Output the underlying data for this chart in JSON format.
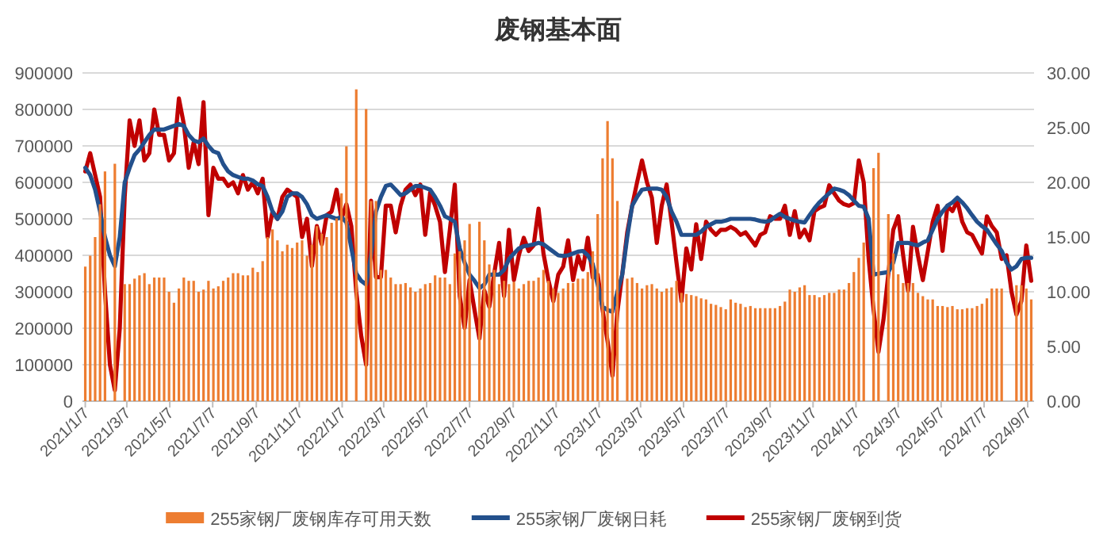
{
  "chart_data": {
    "type": "bar",
    "title": "废钢基本面",
    "legend": "bottom",
    "grid": "y",
    "xlim": [
      "2021-01-03",
      "2024-09-16"
    ],
    "xticks": [
      {
        "value": "2021-01-07",
        "label": "2021/1/7"
      },
      {
        "value": "2021-03-07",
        "label": "2021/3/7"
      },
      {
        "value": "2021-05-07",
        "label": "2021/5/7"
      },
      {
        "value": "2021-07-07",
        "label": "2021/7/7"
      },
      {
        "value": "2021-09-07",
        "label": "2021/9/7"
      },
      {
        "value": "2021-11-07",
        "label": "2021/11/7"
      },
      {
        "value": "2022-01-07",
        "label": "2022/1/7"
      },
      {
        "value": "2022-03-07",
        "label": "2022/3/7"
      },
      {
        "value": "2022-05-07",
        "label": "2022/5/7"
      },
      {
        "value": "2022-07-07",
        "label": "2022/7/7"
      },
      {
        "value": "2022-09-07",
        "label": "2022/9/7"
      },
      {
        "value": "2022-11-07",
        "label": "2022/11/7"
      },
      {
        "value": "2023-01-07",
        "label": "2023/1/7"
      },
      {
        "value": "2023-03-07",
        "label": "2023/3/7"
      },
      {
        "value": "2023-05-07",
        "label": "2023/5/7"
      },
      {
        "value": "2023-07-07",
        "label": "2023/7/7"
      },
      {
        "value": "2023-09-07",
        "label": "2023/9/7"
      },
      {
        "value": "2023-11-07",
        "label": "2023/11/7"
      },
      {
        "value": "2024-01-07",
        "label": "2024/1/7"
      },
      {
        "value": "2024-03-07",
        "label": "2024/3/7"
      },
      {
        "value": "2024-05-07",
        "label": "2024/5/7"
      },
      {
        "value": "2024-07-07",
        "label": "2024/7/7"
      },
      {
        "value": "2024-09-07",
        "label": "2024/9/7"
      }
    ],
    "ylim": [
      0,
      900000
    ],
    "yticks": [
      0,
      100000,
      200000,
      300000,
      400000,
      500000,
      600000,
      700000,
      800000,
      900000
    ],
    "y2lim": [
      0,
      30
    ],
    "y2ticks": [
      {
        "value": 0,
        "label": "0.00"
      },
      {
        "value": 5,
        "label": "5.00"
      },
      {
        "value": 10,
        "label": "10.00"
      },
      {
        "value": 15,
        "label": "15.00"
      },
      {
        "value": 20,
        "label": "20.00"
      },
      {
        "value": 25,
        "label": "25.00"
      },
      {
        "value": 30,
        "label": "30.00"
      }
    ],
    "x": [
      "2021-01-07",
      "2021-01-14",
      "2021-01-21",
      "2021-01-28",
      "2021-02-04",
      "2021-02-11",
      "2021-02-18",
      "2021-02-25",
      "2021-03-04",
      "2021-03-11",
      "2021-03-18",
      "2021-03-25",
      "2021-04-01",
      "2021-04-08",
      "2021-04-15",
      "2021-04-22",
      "2021-04-29",
      "2021-05-06",
      "2021-05-13",
      "2021-05-20",
      "2021-05-27",
      "2021-06-03",
      "2021-06-10",
      "2021-06-17",
      "2021-06-24",
      "2021-07-01",
      "2021-07-08",
      "2021-07-15",
      "2021-07-22",
      "2021-07-29",
      "2021-08-05",
      "2021-08-12",
      "2021-08-19",
      "2021-08-26",
      "2021-09-02",
      "2021-09-09",
      "2021-09-16",
      "2021-09-23",
      "2021-09-30",
      "2021-10-07",
      "2021-10-14",
      "2021-10-21",
      "2021-10-28",
      "2021-11-04",
      "2021-11-11",
      "2021-11-18",
      "2021-11-25",
      "2021-12-02",
      "2021-12-09",
      "2021-12-16",
      "2021-12-23",
      "2021-12-30",
      "2022-01-06",
      "2022-01-13",
      "2022-01-20",
      "2022-01-27",
      "2022-02-03",
      "2022-02-10",
      "2022-02-17",
      "2022-02-24",
      "2022-03-03",
      "2022-03-10",
      "2022-03-17",
      "2022-03-24",
      "2022-03-31",
      "2022-04-07",
      "2022-04-14",
      "2022-04-21",
      "2022-04-28",
      "2022-05-05",
      "2022-05-12",
      "2022-05-19",
      "2022-05-26",
      "2022-06-02",
      "2022-06-09",
      "2022-06-16",
      "2022-06-23",
      "2022-06-30",
      "2022-07-07",
      "2022-07-14",
      "2022-07-21",
      "2022-07-28",
      "2022-08-04",
      "2022-08-11",
      "2022-08-18",
      "2022-08-25",
      "2022-09-01",
      "2022-09-08",
      "2022-09-15",
      "2022-09-22",
      "2022-09-29",
      "2022-10-06",
      "2022-10-13",
      "2022-10-20",
      "2022-10-27",
      "2022-11-03",
      "2022-11-10",
      "2022-11-17",
      "2022-11-24",
      "2022-12-01",
      "2022-12-08",
      "2022-12-15",
      "2022-12-22",
      "2022-12-29",
      "2023-01-05",
      "2023-01-12",
      "2023-01-19",
      "2023-01-26",
      "2023-02-02",
      "2023-02-09",
      "2023-02-16",
      "2023-02-23",
      "2023-03-02",
      "2023-03-09",
      "2023-03-16",
      "2023-03-23",
      "2023-03-30",
      "2023-04-06",
      "2023-04-13",
      "2023-04-20",
      "2023-04-27",
      "2023-05-04",
      "2023-05-11",
      "2023-05-18",
      "2023-05-25",
      "2023-06-01",
      "2023-06-08",
      "2023-06-15",
      "2023-06-22",
      "2023-06-29",
      "2023-07-06",
      "2023-07-13",
      "2023-07-20",
      "2023-07-27",
      "2023-08-03",
      "2023-08-10",
      "2023-08-17",
      "2023-08-24",
      "2023-08-31",
      "2023-09-07",
      "2023-09-14",
      "2023-09-21",
      "2023-09-28",
      "2023-10-05",
      "2023-10-12",
      "2023-10-19",
      "2023-10-26",
      "2023-11-02",
      "2023-11-09",
      "2023-11-16",
      "2023-11-23",
      "2023-11-30",
      "2023-12-07",
      "2023-12-14",
      "2023-12-21",
      "2023-12-28",
      "2024-01-04",
      "2024-01-11",
      "2024-01-18",
      "2024-01-25",
      "2024-02-01",
      "2024-02-08",
      "2024-02-15",
      "2024-02-22",
      "2024-02-29",
      "2024-03-07",
      "2024-03-14",
      "2024-03-21",
      "2024-03-28",
      "2024-04-04",
      "2024-04-11",
      "2024-04-18",
      "2024-04-25",
      "2024-05-02",
      "2024-05-09",
      "2024-05-16",
      "2024-05-23",
      "2024-05-30",
      "2024-06-06",
      "2024-06-13",
      "2024-06-20",
      "2024-06-27",
      "2024-07-04",
      "2024-07-11",
      "2024-07-18",
      "2024-07-25",
      "2024-08-01",
      "2024-08-08",
      "2024-08-15",
      "2024-08-22",
      "2024-08-29",
      "2024-09-05",
      "2024-09-12"
    ],
    "series": [
      {
        "name": "255家钢厂废钢库存可用天数",
        "axis": "y2",
        "color": "#ed7d31",
        "values": [
          12.3,
          13.3,
          15.0,
          18.0,
          21.0,
          null,
          21.7,
          null,
          10.7,
          10.7,
          11.2,
          11.5,
          11.7,
          10.7,
          11.3,
          11.3,
          11.3,
          10.0,
          9.0,
          10.3,
          11.3,
          11.0,
          11.0,
          10.0,
          10.2,
          11.0,
          10.3,
          10.5,
          11.0,
          11.3,
          11.7,
          11.7,
          11.5,
          11.5,
          12.2,
          11.8,
          12.8,
          15.0,
          15.7,
          14.7,
          13.7,
          14.3,
          14.0,
          14.5,
          14.7,
          13.3,
          14.3,
          16.0,
          15.3,
          15.0,
          16.3,
          16.7,
          19.0,
          23.3,
          null,
          28.5,
          null,
          26.7,
          18.3,
          18.3,
          12.0,
          12.0,
          11.3,
          10.7,
          10.7,
          10.8,
          10.4,
          10.0,
          10.3,
          10.7,
          10.8,
          11.5,
          11.3,
          11.3,
          10.7,
          13.5,
          13.7,
          14.7,
          16.2,
          null,
          16.4,
          14.7,
          12.5,
          12.0,
          10.7,
          11.0,
          10.7,
          10.9,
          10.3,
          10.7,
          11.0,
          11.0,
          11.3,
          12.0,
          11.0,
          10.3,
          9.9,
          10.3,
          10.8,
          10.8,
          11.2,
          11.2,
          11.8,
          13.7,
          17.1,
          22.2,
          25.6,
          22.2,
          18.3,
          null,
          11.2,
          11.3,
          10.8,
          10.3,
          10.6,
          10.7,
          10.3,
          10.0,
          10.3,
          10.4,
          11.0,
          9.9,
          9.8,
          9.7,
          9.6,
          9.4,
          9.3,
          8.9,
          8.8,
          8.6,
          8.4,
          9.3,
          9.0,
          8.9,
          8.6,
          8.7,
          8.5,
          8.5,
          8.5,
          8.5,
          8.5,
          8.7,
          9.1,
          10.2,
          10.0,
          10.4,
          10.6,
          9.7,
          9.7,
          9.5,
          9.7,
          9.9,
          9.9,
          10.2,
          10.2,
          10.8,
          11.8,
          13.1,
          14.5,
          null,
          21.3,
          22.7,
          null,
          17.1,
          13.5,
          11.6,
          10.8,
          10.8,
          10.8,
          9.9,
          9.6,
          9.3,
          9.3,
          8.7,
          8.7,
          8.6,
          8.7,
          8.4,
          8.4,
          8.5,
          8.5,
          8.7,
          8.9,
          9.4,
          10.3,
          10.3,
          10.3,
          null,
          null,
          10.6,
          10.6,
          10.3,
          9.3
        ]
      },
      {
        "name": "255家钢厂废钢日耗",
        "type": "line",
        "color": "#23508c",
        "values": [
          640000,
          620000,
          580000,
          520000,
          450000,
          400000,
          370000,
          450000,
          600000,
          640000,
          675000,
          690000,
          710000,
          730000,
          745000,
          745000,
          745000,
          750000,
          755000,
          760000,
          755000,
          730000,
          715000,
          710000,
          720000,
          700000,
          685000,
          680000,
          650000,
          630000,
          620000,
          615000,
          610000,
          610000,
          605000,
          595000,
          590000,
          560000,
          520000,
          500000,
          520000,
          560000,
          570000,
          570000,
          560000,
          540000,
          510000,
          500000,
          505000,
          510000,
          505000,
          500000,
          505000,
          490000,
          420000,
          350000,
          330000,
          320000,
          400000,
          520000,
          560000,
          590000,
          594000,
          580000,
          565000,
          570000,
          580000,
          590000,
          590000,
          585000,
          580000,
          560000,
          536000,
          507000,
          500000,
          492000,
          419000,
          380000,
          347000,
          330000,
          310000,
          320000,
          347000,
          347000,
          347000,
          360000,
          390000,
          405000,
          419000,
          425000,
          427000,
          430000,
          434000,
          430000,
          420000,
          410000,
          400000,
          398000,
          400000,
          405000,
          410000,
          412000,
          400000,
          376000,
          320000,
          259000,
          250000,
          245000,
          300000,
          347000,
          450000,
          536000,
          560000,
          580000,
          582000,
          583000,
          583000,
          580000,
          560000,
          520000,
          492000,
          456000,
          456000,
          456000,
          456000,
          465000,
          478000,
          485000,
          492000,
          492000,
          495000,
          500000,
          500000,
          500000,
          500000,
          500000,
          498000,
          494000,
          492000,
          495000,
          505000,
          514000,
          505000,
          500000,
          495000,
          492000,
          490000,
          510000,
          529000,
          545000,
          558000,
          570000,
          583000,
          580000,
          575000,
          565000,
          550000,
          536000,
          533000,
          500000,
          347000,
          350000,
          352000,
          354000,
          380000,
          434000,
          434000,
          434000,
          430000,
          427000,
          435000,
          441000,
          470000,
          500000,
          520000,
          536000,
          545000,
          558000,
          545000,
          529000,
          510000,
          492000,
          480000,
          470000,
          450000,
          430000,
          412000,
          380000,
          361000,
          370000,
          390000,
          393000,
          393000
        ]
      },
      {
        "name": "255家钢厂废钢到货",
        "type": "line",
        "color": "#c00000",
        "values": [
          630000,
          680000,
          620000,
          560000,
          300000,
          100000,
          30000,
          200000,
          560000,
          770000,
          700000,
          770000,
          660000,
          680000,
          800000,
          730000,
          730000,
          660000,
          680000,
          830000,
          760000,
          640000,
          710000,
          650000,
          820000,
          510000,
          640000,
          610000,
          610000,
          590000,
          600000,
          570000,
          620000,
          580000,
          600000,
          570000,
          610000,
          450000,
          520000,
          500000,
          560000,
          580000,
          570000,
          560000,
          450000,
          500000,
          370000,
          480000,
          430000,
          510000,
          520000,
          580000,
          500000,
          540000,
          480000,
          300000,
          180000,
          100000,
          550000,
          340000,
          340000,
          536000,
          536000,
          463000,
          536000,
          580000,
          594000,
          565000,
          594000,
          456000,
          572000,
          536000,
          492000,
          354000,
          470000,
          594000,
          288000,
          201000,
          332000,
          250000,
          172000,
          303000,
          259000,
          350000,
          434000,
          288000,
          470000,
          332000,
          400000,
          448000,
          412000,
          427000,
          528000,
          405000,
          332000,
          274000,
          347000,
          369000,
          441000,
          332000,
          398000,
          361000,
          448000,
          339000,
          347000,
          250000,
          165000,
          70000,
          245000,
          350000,
          463000,
          536000,
          600000,
          660000,
          600000,
          558000,
          434000,
          536000,
          594000,
          492000,
          380000,
          274000,
          419000,
          361000,
          485000,
          390000,
          492000,
          470000,
          456000,
          470000,
          470000,
          478000,
          470000,
          456000,
          463000,
          445000,
          427000,
          456000,
          463000,
          507000,
          500000,
          500000,
          536000,
          456000,
          521000,
          449000,
          470000,
          441000,
          521000,
          530000,
          536000,
          592000,
          570000,
          550000,
          540000,
          536000,
          543000,
          660000,
          600000,
          390000,
          250000,
          135000,
          223000,
          350000,
          470000,
          507000,
          400000,
          303000,
          478000,
          400000,
          332000,
          410000,
          492000,
          536000,
          412000,
          536000,
          521000,
          550000,
          492000,
          463000,
          456000,
          430000,
          405000,
          507000,
          480000,
          463000,
          390000,
          400000,
          300000,
          237000,
          274000,
          427000,
          330000
        ]
      }
    ]
  }
}
